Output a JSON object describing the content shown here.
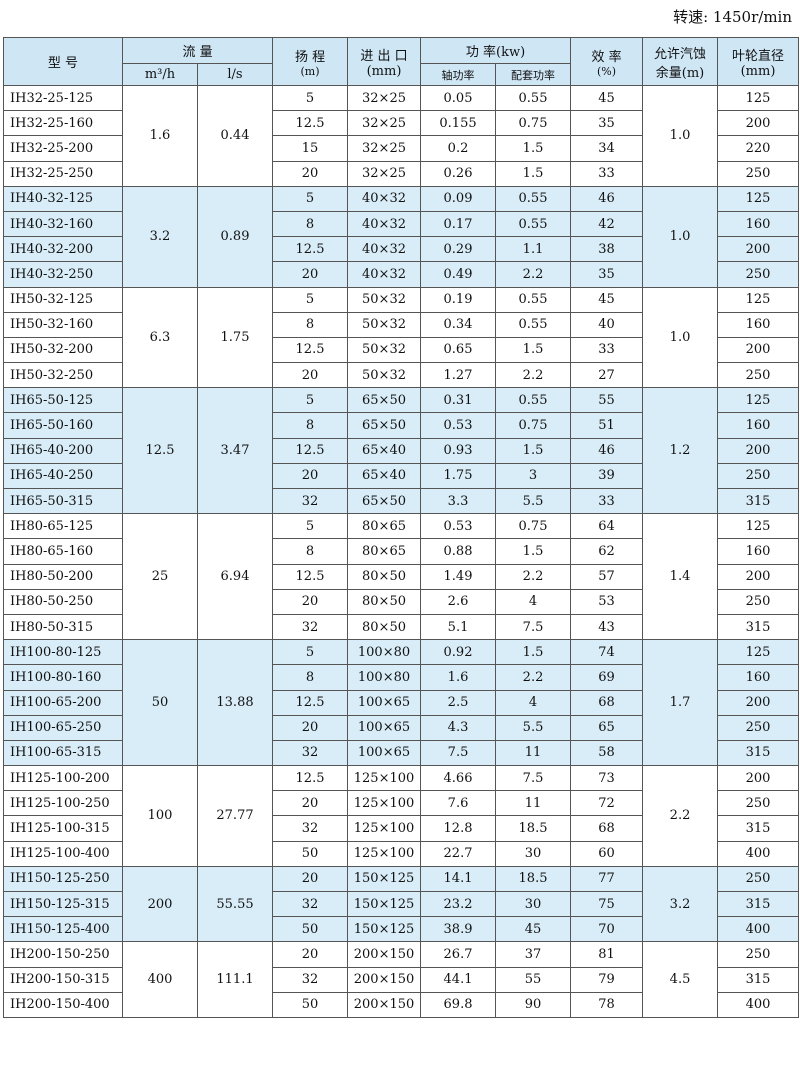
{
  "speed_label": "转速: 1450r/min",
  "headers": {
    "model": "型    号",
    "flow": "流    量",
    "flow_m3h": "m³/h",
    "flow_ls": "l/s",
    "head": "扬 程",
    "head_unit": "(m)",
    "inlet": "进 出 口",
    "inlet_unit": "(mm)",
    "power": "功   率(kw)",
    "shaft_power": "轴功率",
    "motor_power": "配套功率",
    "eff": "效 率",
    "eff_unit": "(%)",
    "npsh": "允许汽蚀",
    "npsh2": "余量(m)",
    "impeller": "叶轮直径",
    "impeller_unit": "(mm)"
  },
  "groups": [
    {
      "m3h": "1.6",
      "ls": "0.44",
      "npsh": "1.0",
      "rows": [
        [
          "IH32-25-125",
          "5",
          "32×25",
          "0.05",
          "0.55",
          "45",
          "125"
        ],
        [
          "IH32-25-160",
          "12.5",
          "32×25",
          "0.155",
          "0.75",
          "35",
          "200"
        ],
        [
          "IH32-25-200",
          "15",
          "32×25",
          "0.2",
          "1.5",
          "34",
          "220"
        ],
        [
          "IH32-25-250",
          "20",
          "32×25",
          "0.26",
          "1.5",
          "33",
          "250"
        ]
      ]
    },
    {
      "m3h": "3.2",
      "ls": "0.89",
      "npsh": "1.0",
      "rows": [
        [
          "IH40-32-125",
          "5",
          "40×32",
          "0.09",
          "0.55",
          "46",
          "125"
        ],
        [
          "IH40-32-160",
          "8",
          "40×32",
          "0.17",
          "0.55",
          "42",
          "160"
        ],
        [
          "IH40-32-200",
          "12.5",
          "40×32",
          "0.29",
          "1.1",
          "38",
          "200"
        ],
        [
          "IH40-32-250",
          "20",
          "40×32",
          "0.49",
          "2.2",
          "35",
          "250"
        ]
      ]
    },
    {
      "m3h": "6.3",
      "ls": "1.75",
      "npsh": "1.0",
      "rows": [
        [
          "IH50-32-125",
          "5",
          "50×32",
          "0.19",
          "0.55",
          "45",
          "125"
        ],
        [
          "IH50-32-160",
          "8",
          "50×32",
          "0.34",
          "0.55",
          "40",
          "160"
        ],
        [
          "IH50-32-200",
          "12.5",
          "50×32",
          "0.65",
          "1.5",
          "33",
          "200"
        ],
        [
          "IH50-32-250",
          "20",
          "50×32",
          "1.27",
          "2.2",
          "27",
          "250"
        ]
      ]
    },
    {
      "m3h": "12.5",
      "ls": "3.47",
      "npsh": "1.2",
      "rows": [
        [
          "IH65-50-125",
          "5",
          "65×50",
          "0.31",
          "0.55",
          "55",
          "125"
        ],
        [
          "IH65-50-160",
          "8",
          "65×50",
          "0.53",
          "0.75",
          "51",
          "160"
        ],
        [
          "IH65-40-200",
          "12.5",
          "65×40",
          "0.93",
          "1.5",
          "46",
          "200"
        ],
        [
          "IH65-40-250",
          "20",
          "65×40",
          "1.75",
          "3",
          "39",
          "250"
        ],
        [
          "IH65-50-315",
          "32",
          "65×50",
          "3.3",
          "5.5",
          "33",
          "315"
        ]
      ]
    },
    {
      "m3h": "25",
      "ls": "6.94",
      "npsh": "1.4",
      "rows": [
        [
          "IH80-65-125",
          "5",
          "80×65",
          "0.53",
          "0.75",
          "64",
          "125"
        ],
        [
          "IH80-65-160",
          "8",
          "80×65",
          "0.88",
          "1.5",
          "62",
          "160"
        ],
        [
          "IH80-50-200",
          "12.5",
          "80×50",
          "1.49",
          "2.2",
          "57",
          "200"
        ],
        [
          "IH80-50-250",
          "20",
          "80×50",
          "2.6",
          "4",
          "53",
          "250"
        ],
        [
          "IH80-50-315",
          "32",
          "80×50",
          "5.1",
          "7.5",
          "43",
          "315"
        ]
      ]
    },
    {
      "m3h": "50",
      "ls": "13.88",
      "npsh": "1.7",
      "rows": [
        [
          "IH100-80-125",
          "5",
          "100×80",
          "0.92",
          "1.5",
          "74",
          "125"
        ],
        [
          "IH100-80-160",
          "8",
          "100×80",
          "1.6",
          "2.2",
          "69",
          "160"
        ],
        [
          "IH100-65-200",
          "12.5",
          "100×65",
          "2.5",
          "4",
          "68",
          "200"
        ],
        [
          "IH100-65-250",
          "20",
          "100×65",
          "4.3",
          "5.5",
          "65",
          "250"
        ],
        [
          "IH100-65-315",
          "32",
          "100×65",
          "7.5",
          "11",
          "58",
          "315"
        ]
      ]
    },
    {
      "m3h": "100",
      "ls": "27.77",
      "npsh": "2.2",
      "rows": [
        [
          "IH125-100-200",
          "12.5",
          "125×100",
          "4.66",
          "7.5",
          "73",
          "200"
        ],
        [
          "IH125-100-250",
          "20",
          "125×100",
          "7.6",
          "11",
          "72",
          "250"
        ],
        [
          "IH125-100-315",
          "32",
          "125×100",
          "12.8",
          "18.5",
          "68",
          "315"
        ],
        [
          "IH125-100-400",
          "50",
          "125×100",
          "22.7",
          "30",
          "60",
          "400"
        ]
      ]
    },
    {
      "m3h": "200",
      "ls": "55.55",
      "npsh": "3.2",
      "rows": [
        [
          "IH150-125-250",
          "20",
          "150×125",
          "14.1",
          "18.5",
          "77",
          "250"
        ],
        [
          "IH150-125-315",
          "32",
          "150×125",
          "23.2",
          "30",
          "75",
          "315"
        ],
        [
          "IH150-125-400",
          "50",
          "150×125",
          "38.9",
          "45",
          "70",
          "400"
        ]
      ]
    },
    {
      "m3h": "400",
      "ls": "111.1",
      "npsh": "4.5",
      "rows": [
        [
          "IH200-150-250",
          "20",
          "200×150",
          "26.7",
          "37",
          "81",
          "250"
        ],
        [
          "IH200-150-315",
          "32",
          "200×150",
          "44.1",
          "55",
          "79",
          "315"
        ],
        [
          "IH200-150-400",
          "50",
          "200×150",
          "69.8",
          "90",
          "78",
          "400"
        ]
      ]
    }
  ]
}
